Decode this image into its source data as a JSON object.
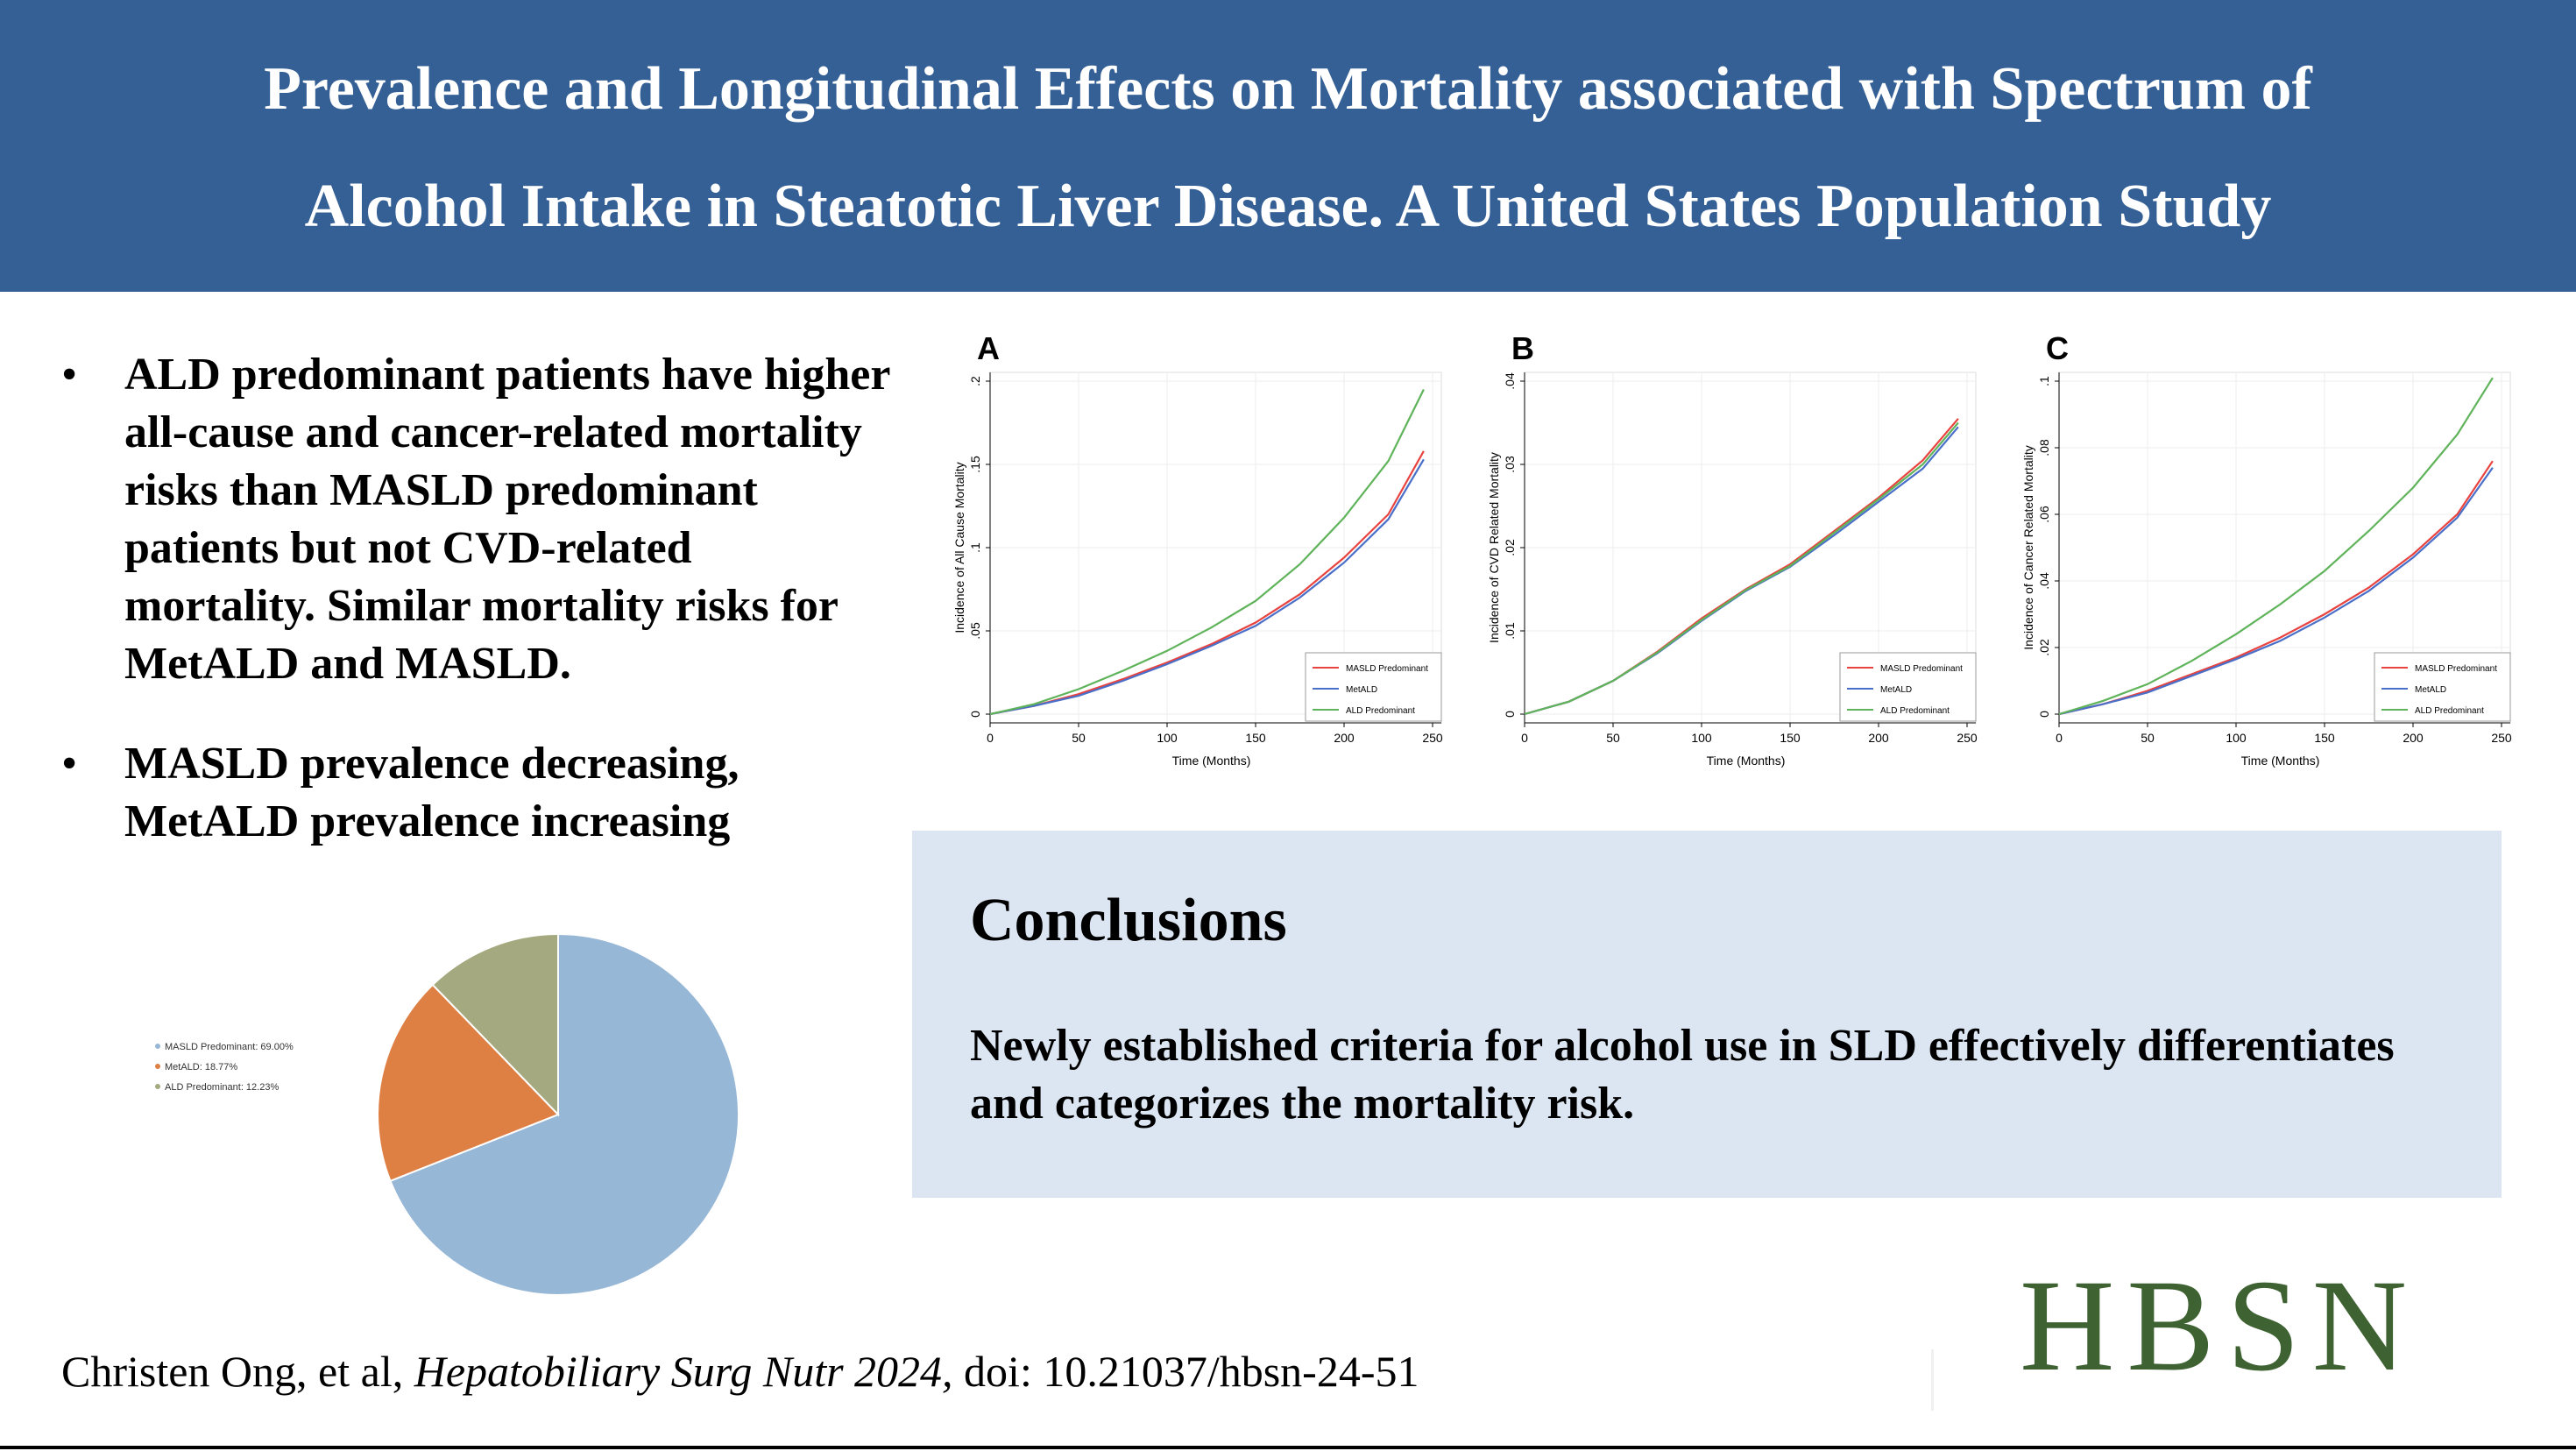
{
  "title": {
    "line1": "Prevalence and Longitudinal Effects on Mortality associated with Spectrum of",
    "line2": "Alcohol Intake in Steatotic Liver Disease. A United States Population Study"
  },
  "bullets": [
    "ALD predominant patients have higher all-cause and cancer-related mortality risks than MASLD predominant patients but not CVD-related mortality. Similar mortality risks for MetALD and MASLD.",
    "MASLD prevalence decreasing, MetALD prevalence increasing"
  ],
  "colors": {
    "header": "#356096",
    "masld": "#e8433f",
    "metald": "#4a6fc9",
    "ald": "#5fb35a",
    "conclusion_bg": "#dce6f2",
    "logo": "#3e6232"
  },
  "chart_data": [
    {
      "type": "line",
      "panel": "A",
      "xlabel": "Time (Months)",
      "ylabel": "Incidence of All Cause Mortality",
      "xlim": [
        0,
        250
      ],
      "ylim": [
        0,
        0.2
      ],
      "xticks": [
        "0",
        "50",
        "100",
        "150",
        "200",
        "250"
      ],
      "yticks": [
        "0",
        ".05",
        ".1",
        ".15",
        ".2"
      ],
      "x": [
        0,
        25,
        50,
        75,
        100,
        125,
        150,
        175,
        200,
        225,
        245
      ],
      "series": [
        {
          "name": "MASLD Predominant",
          "values": [
            0,
            0.005,
            0.012,
            0.021,
            0.031,
            0.042,
            0.055,
            0.072,
            0.094,
            0.12,
            0.158
          ]
        },
        {
          "name": "MetALD",
          "values": [
            0,
            0.005,
            0.011,
            0.02,
            0.03,
            0.041,
            0.053,
            0.07,
            0.091,
            0.117,
            0.153
          ]
        },
        {
          "name": "ALD Predominant",
          "values": [
            0,
            0.006,
            0.015,
            0.026,
            0.038,
            0.052,
            0.068,
            0.09,
            0.118,
            0.152,
            0.195
          ]
        }
      ],
      "grid": true,
      "legend_position": "bottom-right"
    },
    {
      "type": "line",
      "panel": "B",
      "xlabel": "Time (Months)",
      "ylabel": "Incidence of CVD Related Mortality",
      "xlim": [
        0,
        250
      ],
      "ylim": [
        0,
        0.04
      ],
      "xticks": [
        "0",
        "50",
        "100",
        "150",
        "200",
        "250"
      ],
      "yticks": [
        "0",
        ".01",
        ".02",
        ".03",
        ".04"
      ],
      "x": [
        0,
        25,
        50,
        75,
        100,
        125,
        150,
        175,
        200,
        225,
        245
      ],
      "series": [
        {
          "name": "MASLD Predominant",
          "values": [
            0,
            0.0015,
            0.004,
            0.0075,
            0.0115,
            0.015,
            0.018,
            0.022,
            0.026,
            0.0305,
            0.0355
          ]
        },
        {
          "name": "MetALD",
          "values": [
            0,
            0.0015,
            0.004,
            0.0073,
            0.0112,
            0.0148,
            0.0177,
            0.0215,
            0.0255,
            0.0295,
            0.0345
          ]
        },
        {
          "name": "ALD Predominant",
          "values": [
            0,
            0.0015,
            0.004,
            0.0074,
            0.0113,
            0.0149,
            0.0178,
            0.0218,
            0.0258,
            0.03,
            0.035
          ]
        }
      ],
      "grid": true,
      "legend_position": "bottom-right"
    },
    {
      "type": "line",
      "panel": "C",
      "xlabel": "Time (Months)",
      "ylabel": "Incidence of Cancer Related Mortality",
      "xlim": [
        0,
        250
      ],
      "ylim": [
        0,
        0.1
      ],
      "xticks": [
        "0",
        "50",
        "100",
        "150",
        "200",
        "250"
      ],
      "yticks": [
        "0",
        ".02",
        ".04",
        ".06",
        ".08",
        ".1"
      ],
      "x": [
        0,
        25,
        50,
        75,
        100,
        125,
        150,
        175,
        200,
        225,
        245
      ],
      "series": [
        {
          "name": "MASLD Predominant",
          "values": [
            0,
            0.003,
            0.007,
            0.012,
            0.017,
            0.023,
            0.03,
            0.038,
            0.048,
            0.06,
            0.076
          ]
        },
        {
          "name": "MetALD",
          "values": [
            0,
            0.003,
            0.0065,
            0.0115,
            0.0165,
            0.022,
            0.029,
            0.037,
            0.047,
            0.059,
            0.074
          ]
        },
        {
          "name": "ALD Predominant",
          "values": [
            0,
            0.004,
            0.009,
            0.016,
            0.024,
            0.033,
            0.043,
            0.055,
            0.068,
            0.084,
            0.101
          ]
        }
      ],
      "grid": true,
      "legend_position": "bottom-right"
    },
    {
      "type": "pie",
      "categories": [
        "MASLD Predominant",
        "MetALD",
        "ALD Predominant"
      ],
      "values": [
        69.0,
        18.77,
        12.23
      ],
      "labels": [
        "MASLD Predominant: 69.00%",
        "MetALD: 18.77%",
        "ALD Predominant: 12.23%"
      ],
      "colors": [
        "#97b7d6",
        "#de7f44",
        "#a5a97f"
      ],
      "legend_position": "left"
    }
  ],
  "conclusions": {
    "heading": "Conclusions",
    "body": "Newly established criteria for alcohol use in SLD effectively differentiates and categorizes the mortality risk."
  },
  "citation": {
    "authors": "Christen Ong, et al, ",
    "journal": "Hepatobiliary Surg Nutr 2024,",
    "doi": " doi: 10.21037/hbsn-24-51"
  },
  "logo": "HBSN"
}
